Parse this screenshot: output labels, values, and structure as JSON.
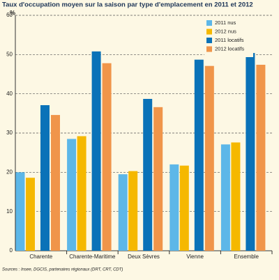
{
  "chart_data": {
    "type": "bar",
    "title": "Taux d'occupation moyen sur la saison par type d'emplacement en 2011 et 2012",
    "y_unit": "%",
    "categories": [
      "Charente",
      "Charente-Maritime",
      "Deux Sèvres",
      "Vienne",
      "Ensemble"
    ],
    "series": [
      {
        "name": "2011 nus",
        "color": "#5db7e8",
        "values": [
          20,
          28.5,
          19.5,
          22,
          27.1
        ]
      },
      {
        "name": "2012 nus",
        "color": "#f5b800",
        "values": [
          18.6,
          29.2,
          20.3,
          21.7,
          27.6
        ]
      },
      {
        "name": "2011 locatifs",
        "color": "#0a72b8",
        "values": [
          37.1,
          50.8,
          38.7,
          48.7,
          50.4
        ]
      },
      {
        "name": "2012 locatifs",
        "color": "#f0954a",
        "values": [
          34.6,
          47.8,
          36.6,
          47.1,
          47.4
        ]
      }
    ],
    "ylim": [
      0,
      60
    ],
    "yticks": [
      0,
      10,
      20,
      30,
      40,
      50,
      60
    ],
    "grid": true,
    "legend": "top-right",
    "source": "Sources : Insee, DGCIS, partenaires régionaux (DRT, CRT, CDT)"
  }
}
